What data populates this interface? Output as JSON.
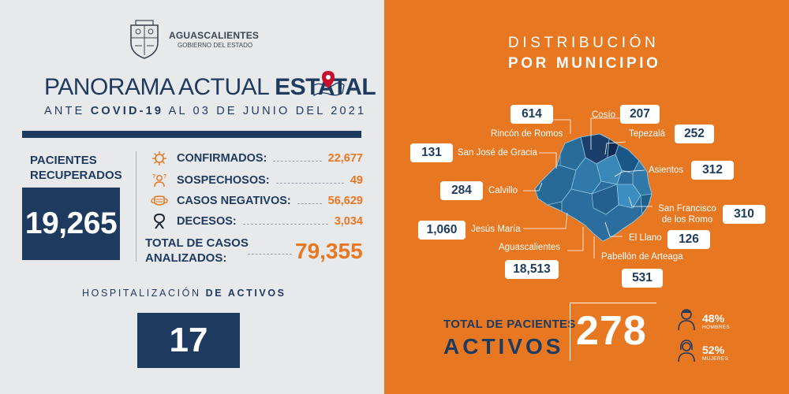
{
  "header": {
    "gov_name": "AGUASCALIENTES",
    "gov_sub": "GOBIERNO DEL ESTADO",
    "title_light": "PANORAMA ACTUAL ",
    "title_bold": "ESTATAL",
    "subtitle_pre": "ANTE ",
    "subtitle_bold": "COVID-19",
    "subtitle_post": " AL 03 DE JUNIO DEL 2021"
  },
  "recovered": {
    "label": "PACIENTES RECUPERADOS",
    "value": "19,265"
  },
  "stats": [
    {
      "label": "CONFIRMADOS:",
      "value": "22,677",
      "icon": "virus-icon"
    },
    {
      "label": "SOSPECHOSOS:",
      "value": "49",
      "icon": "person-question-icon"
    },
    {
      "label": "CASOS NEGATIVOS:",
      "value": "56,629",
      "icon": "mask-icon"
    },
    {
      "label": "DECESOS:",
      "value": "3,034",
      "icon": "mourning-ribbon-icon"
    }
  ],
  "total_analyzed": {
    "label_1": "TOTAL DE CASOS",
    "label_2": "ANALIZADOS:",
    "value": "79,355"
  },
  "hospital": {
    "label_pre": "HOSPITALIZACIÓN ",
    "label_bold": "DE ACTIVOS",
    "value": "17"
  },
  "distribution": {
    "title_1": "DISTRIBUCIÓN",
    "title_2": "POR MUNICIPIO"
  },
  "municipalities": [
    {
      "name": "Rincón de Romos",
      "value": "614"
    },
    {
      "name": "Cosío",
      "value": "207"
    },
    {
      "name": "Tepezalá",
      "value": "252"
    },
    {
      "name": "San José de Gracia",
      "value": "131"
    },
    {
      "name": "Asientos",
      "value": "312"
    },
    {
      "name": "Calvillo",
      "value": "284"
    },
    {
      "name": "San Francisco de los Romo",
      "value": "310"
    },
    {
      "name": "Jesús María",
      "value": "1,060"
    },
    {
      "name": "El Llano",
      "value": "126"
    },
    {
      "name": "Aguascalientes",
      "value": "18,513"
    },
    {
      "name": "Pabellón de Arteaga",
      "value": "531"
    }
  ],
  "active": {
    "label_1": "TOTAL DE PACIENTES",
    "label_2": "ACTIVOS",
    "value": "278",
    "men_pct": "48%",
    "men_label": "HOMBRES",
    "women_pct": "52%",
    "women_label": "MUJERES"
  },
  "colors": {
    "navy": "#1e3a5f",
    "orange": "#e87722",
    "background": "#e8e9eb"
  }
}
